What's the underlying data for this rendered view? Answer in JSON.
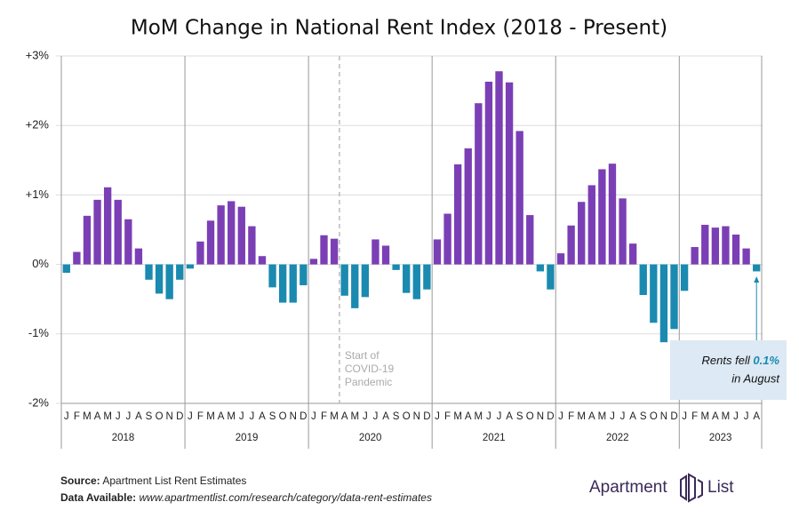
{
  "chart_data": {
    "type": "bar",
    "title": "MoM Change in National Rent Index (2018 - Present)",
    "categories": [
      "J",
      "F",
      "M",
      "A",
      "M",
      "J",
      "J",
      "A",
      "S",
      "O",
      "N",
      "D",
      "J",
      "F",
      "M",
      "A",
      "M",
      "J",
      "J",
      "A",
      "S",
      "O",
      "N",
      "D",
      "J",
      "F",
      "M",
      "A",
      "M",
      "J",
      "J",
      "A",
      "S",
      "O",
      "N",
      "D",
      "J",
      "F",
      "M",
      "A",
      "M",
      "J",
      "J",
      "A",
      "S",
      "O",
      "N",
      "D",
      "J",
      "F",
      "M",
      "A",
      "M",
      "J",
      "J",
      "A",
      "S",
      "O",
      "N",
      "D",
      "J",
      "F",
      "M",
      "A",
      "M",
      "J",
      "J",
      "A"
    ],
    "groups": [
      "2018",
      "2019",
      "2020",
      "2021",
      "2022",
      "2023"
    ],
    "values": [
      -0.12,
      0.18,
      0.7,
      0.93,
      1.11,
      0.93,
      0.65,
      0.23,
      -0.22,
      -0.42,
      -0.5,
      -0.22,
      -0.06,
      0.33,
      0.63,
      0.85,
      0.91,
      0.83,
      0.55,
      0.12,
      -0.33,
      -0.55,
      -0.55,
      -0.3,
      0.08,
      0.42,
      0.37,
      -0.45,
      -0.63,
      -0.47,
      0.36,
      0.27,
      -0.08,
      -0.41,
      -0.5,
      -0.36,
      0.36,
      0.73,
      1.44,
      1.67,
      2.32,
      2.63,
      2.78,
      2.62,
      1.92,
      0.71,
      -0.1,
      -0.36,
      0.16,
      0.56,
      0.9,
      1.14,
      1.37,
      1.45,
      0.95,
      0.3,
      -0.44,
      -0.84,
      -1.12,
      -0.93,
      -0.38,
      0.25,
      0.57,
      0.53,
      0.55,
      0.43,
      0.23,
      -0.1
    ],
    "positive_color": "#7b3fb5",
    "negative_color": "#1a8ab0",
    "ylim": [
      -2,
      3
    ],
    "yticks": [
      {
        "value": -2,
        "label": "-2%"
      },
      {
        "value": -1,
        "label": "-1%"
      },
      {
        "value": 0,
        "label": "0%"
      },
      {
        "value": 1,
        "label": "+1%"
      },
      {
        "value": 2,
        "label": "+2%"
      },
      {
        "value": 3,
        "label": "+3%"
      }
    ],
    "grid": true,
    "covid_annotation": [
      "Start of",
      "COVID-19",
      "Pandemic"
    ],
    "callout": {
      "text_before": "Rents fell ",
      "highlight": "0.1%",
      "text_after": "in August"
    }
  },
  "footer": {
    "source_label": "Source:",
    "source": "Apartment List Rent Estimates",
    "data_label": "Data Available:",
    "data_url": "www.apartmentlist.com/research/category/data-rent-estimates"
  },
  "logo": {
    "left": "Apartment",
    "right": "List"
  }
}
